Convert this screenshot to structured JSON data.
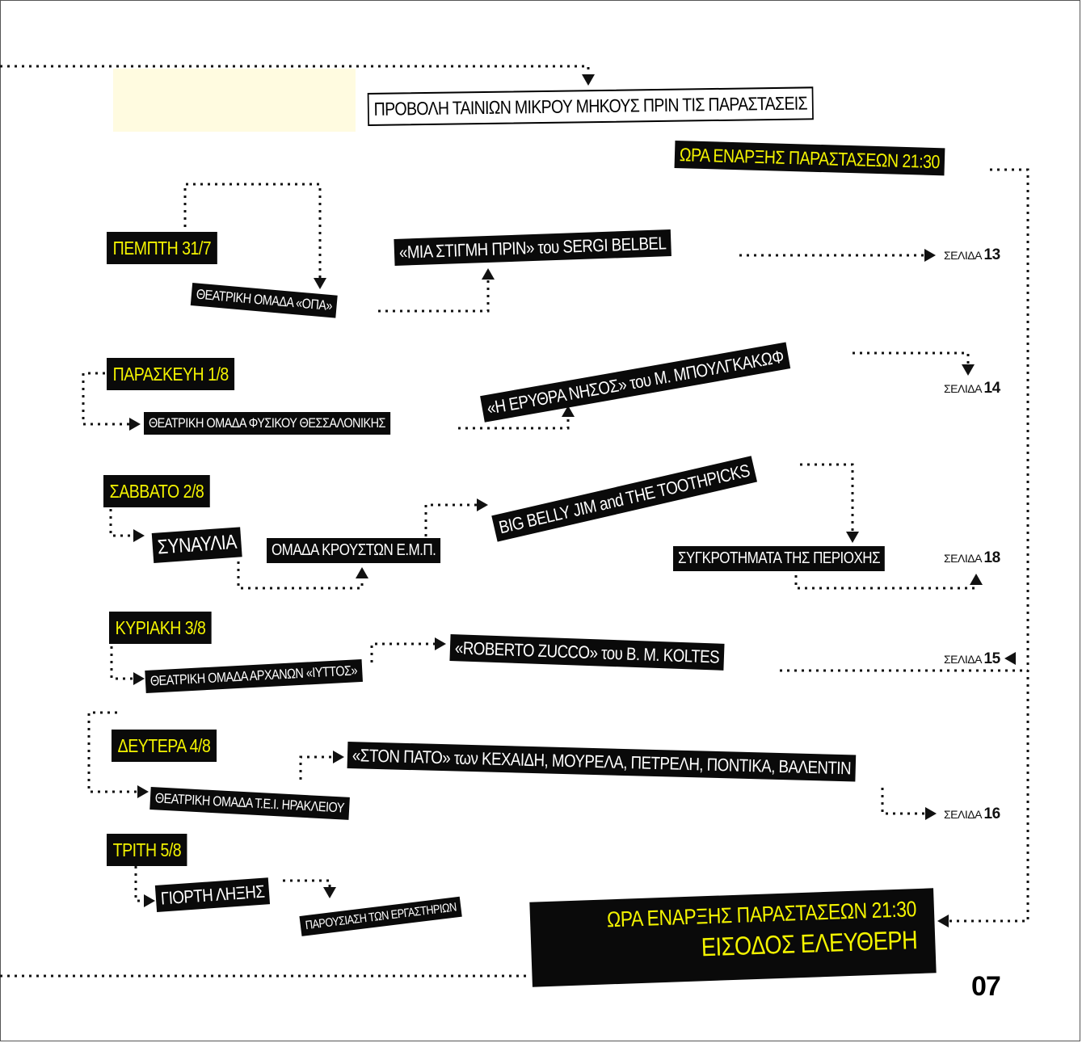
{
  "header": {
    "screening_note": "ΠΡΟΒΟΛΗ ΤΑΙΝΙΩΝ ΜΙΚΡΟΥ ΜΗΚΟΥΣ ΠΡΙΝ ΤΙΣ ΠΑΡΑΣΤΑΣΕΙΣ",
    "start_time": "ΩΡΑ ΕΝΑΡΞΗΣ ΠΑΡΑΣΤΑΣΕΩΝ 21:30"
  },
  "days": [
    {
      "date": "ΠΕΜΠΤΗ 31/7",
      "group": "ΘΕΑΤΡΙΚΗ ΟΜΑΔΑ «ΟΠΑ»",
      "show": "«ΜΙΑ ΣΤΙΓΜΗ ΠΡΙΝ» του SERGI BELBEL",
      "page_label": "ΣΕΛΙΔΑ",
      "page": "13"
    },
    {
      "date": "ΠΑΡΑΣΚΕΥΗ 1/8",
      "group": "ΘΕΑΤΡΙΚΗ ΟΜΑΔΑ ΦΥΣΙΚΟΥ ΘΕΣΣΑΛΟΝΙΚΗΣ",
      "show": "«Η ΕΡΥΘΡΑ ΝΗΣΟΣ» του Μ. ΜΠΟΥΛΓΚΑΚΩΦ",
      "page_label": "ΣΕΛΙΔΑ",
      "page": "14"
    },
    {
      "date": "ΣΑΒΒΑΤΟ 2/8",
      "event": "ΣΥΝΑΥΛΙΑ",
      "acts": [
        "ΟΜΑΔΑ ΚΡΟΥΣΤΩΝ Ε.Μ.Π.",
        "BIG BELLY JIM and THE TOOTHPICKS",
        "ΣΥΓΚΡΟΤΗΜΑΤΑ ΤΗΣ ΠΕΡΙΟΧΗΣ"
      ],
      "page_label": "ΣΕΛΙΔΑ",
      "page": "18"
    },
    {
      "date": "ΚΥΡΙΑΚΗ 3/8",
      "group": "ΘΕΑΤΡΙΚΗ ΟΜΑΔΑ ΑΡΧΑΝΩΝ «ΙΥΤΤΟΣ»",
      "show": "«ROBERTO ZUCCO» του Β. Μ. KOLTES",
      "page_label": "ΣΕΛΙΔΑ",
      "page": "15"
    },
    {
      "date": "ΔΕΥΤΕΡΑ 4/8",
      "group": "ΘΕΑΤΡΙΚΗ ΟΜΑΔΑ Τ.Ε.Ι. ΗΡΑΚΛΕΙΟΥ",
      "show": "«ΣΤΟΝ ΠΑΤΟ» των ΚΕΧΑΙΔΗ, ΜΟΥΡΕΛΑ, ΠΕΤΡΕΛΗ, ΠΟΝΤΙΚΑ, ΒΑΛΕΝΤΙΝ",
      "page_label": "ΣΕΛΙΔΑ",
      "page": "16"
    },
    {
      "date": "ΤΡΙΤΗ 5/8",
      "event": "ΓΙΟΡΤΗ ΛΗΞΗΣ",
      "detail": "ΠΑΡΟΥΣΙΑΣΗ ΤΩΝ ΕΡΓΑΣΤΗΡΙΩΝ"
    }
  ],
  "footer": {
    "start_time": "ΩΡΑ ΕΝΑΡΞΗΣ ΠΑΡΑΣΤΑΣΕΩΝ 21:30",
    "admission": "ΕΙΣΟΔΟΣ ΕΛΕΥΘΕΡΗ",
    "page_number": "07"
  },
  "colors": {
    "highlight": "#f4f400",
    "label_bg": "#0a0a0a",
    "text": "#ffffff"
  }
}
